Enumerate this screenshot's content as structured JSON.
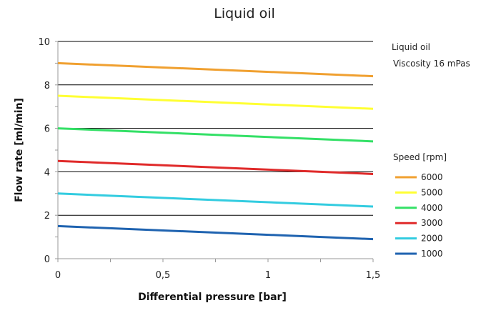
{
  "chart_data": {
    "type": "line",
    "title": "Liquid oil",
    "xlabel": "Differential pressure [bar]",
    "ylabel": "Flow rate [ml/min]",
    "xlim": [
      0,
      1.5
    ],
    "ylim": [
      0,
      10
    ],
    "x_ticks": [
      "0",
      "0,5",
      "1",
      "1,5"
    ],
    "y_ticks": [
      "0",
      "2",
      "4",
      "6",
      "8",
      "10"
    ],
    "grid": "horizontal",
    "annotations": [
      "Liquid oil",
      "Viscosity 16 mPas"
    ],
    "legend_title": "Speed [rpm]",
    "legend_position": "right",
    "x": [
      0,
      1.5
    ],
    "series": [
      {
        "name": "6000",
        "color": "#f0a030",
        "values": [
          9.0,
          8.4
        ]
      },
      {
        "name": "5000",
        "color": "#ffff33",
        "values": [
          7.5,
          6.9
        ]
      },
      {
        "name": "4000",
        "color": "#33e066",
        "values": [
          6.0,
          5.4
        ]
      },
      {
        "name": "3000",
        "color": "#e02a2a",
        "values": [
          4.5,
          3.9
        ]
      },
      {
        "name": "2000",
        "color": "#33cce0",
        "values": [
          3.0,
          2.4
        ]
      },
      {
        "name": "1000",
        "color": "#1f63b0",
        "values": [
          1.5,
          0.9
        ]
      }
    ]
  }
}
